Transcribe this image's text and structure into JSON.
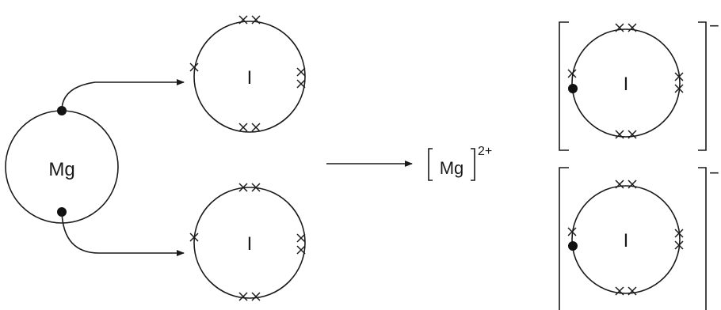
{
  "diagram": {
    "mg_label": "Mg",
    "iodine_label": "I",
    "ion_label": "Mg",
    "ion_charge": "2+",
    "anion_charge": "−"
  }
}
